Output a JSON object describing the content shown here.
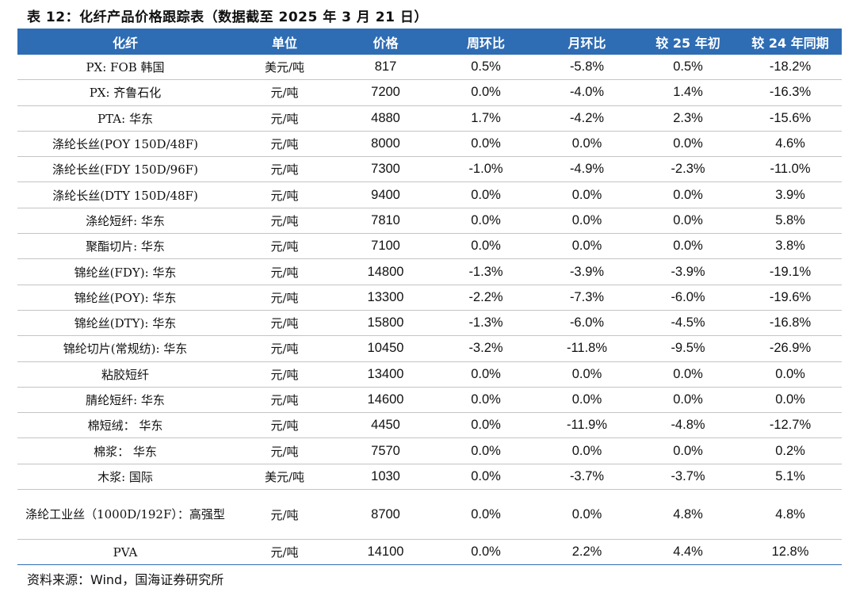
{
  "title": "表 12：化纤产品价格跟踪表（数据截至 2025 年 3 月 21 日）",
  "headers": [
    "化纤",
    "单位",
    "价格",
    "周环比",
    "月环比",
    "较 25 年初",
    "较 24 年同期"
  ],
  "rows": [
    {
      "name": "PX: FOB 韩国",
      "unit": "美元/吨",
      "price": "817",
      "wow": "0.5%",
      "mom": "-5.8%",
      "ytd": "0.5%",
      "yoy": "-18.2%"
    },
    {
      "name": "PX: 齐鲁石化",
      "unit": "元/吨",
      "price": "7200",
      "wow": "0.0%",
      "mom": "-4.0%",
      "ytd": "1.4%",
      "yoy": "-16.3%"
    },
    {
      "name": "PTA: 华东",
      "unit": "元/吨",
      "price": "4880",
      "wow": "1.7%",
      "mom": "-4.2%",
      "ytd": "2.3%",
      "yoy": "-15.6%"
    },
    {
      "name": "涤纶长丝(POY 150D/48F)",
      "unit": "元/吨",
      "price": "8000",
      "wow": "0.0%",
      "mom": "0.0%",
      "ytd": "0.0%",
      "yoy": "4.6%"
    },
    {
      "name": "涤纶长丝(FDY 150D/96F)",
      "unit": "元/吨",
      "price": "7300",
      "wow": "-1.0%",
      "mom": "-4.9%",
      "ytd": "-2.3%",
      "yoy": "-11.0%"
    },
    {
      "name": "涤纶长丝(DTY 150D/48F)",
      "unit": "元/吨",
      "price": "9400",
      "wow": "0.0%",
      "mom": "0.0%",
      "ytd": "0.0%",
      "yoy": "3.9%"
    },
    {
      "name": "涤纶短纤: 华东",
      "unit": "元/吨",
      "price": "7810",
      "wow": "0.0%",
      "mom": "0.0%",
      "ytd": "0.0%",
      "yoy": "5.8%"
    },
    {
      "name": "聚酯切片: 华东",
      "unit": "元/吨",
      "price": "7100",
      "wow": "0.0%",
      "mom": "0.0%",
      "ytd": "0.0%",
      "yoy": "3.8%"
    },
    {
      "name": "锦纶丝(FDY): 华东",
      "unit": "元/吨",
      "price": "14800",
      "wow": "-1.3%",
      "mom": "-3.9%",
      "ytd": "-3.9%",
      "yoy": "-19.1%"
    },
    {
      "name": "锦纶丝(POY): 华东",
      "unit": "元/吨",
      "price": "13300",
      "wow": "-2.2%",
      "mom": "-7.3%",
      "ytd": "-6.0%",
      "yoy": "-19.6%"
    },
    {
      "name": "锦纶丝(DTY): 华东",
      "unit": "元/吨",
      "price": "15800",
      "wow": "-1.3%",
      "mom": "-6.0%",
      "ytd": "-4.5%",
      "yoy": "-16.8%"
    },
    {
      "name": "锦纶切片(常规纺): 华东",
      "unit": "元/吨",
      "price": "10450",
      "wow": "-3.2%",
      "mom": "-11.8%",
      "ytd": "-9.5%",
      "yoy": "-26.9%"
    },
    {
      "name": "粘胶短纤",
      "unit": "元/吨",
      "price": "13400",
      "wow": "0.0%",
      "mom": "0.0%",
      "ytd": "0.0%",
      "yoy": "0.0%"
    },
    {
      "name": "腈纶短纤: 华东",
      "unit": "元/吨",
      "price": "14600",
      "wow": "0.0%",
      "mom": "0.0%",
      "ytd": "0.0%",
      "yoy": "0.0%"
    },
    {
      "name": "棉短绒： 华东",
      "unit": "元/吨",
      "price": "4450",
      "wow": "0.0%",
      "mom": "-11.9%",
      "ytd": "-4.8%",
      "yoy": "-12.7%"
    },
    {
      "name": "棉浆： 华东",
      "unit": "元/吨",
      "price": "7570",
      "wow": "0.0%",
      "mom": "0.0%",
      "ytd": "0.0%",
      "yoy": "0.2%"
    },
    {
      "name": "木浆: 国际",
      "unit": "美元/吨",
      "price": "1030",
      "wow": "0.0%",
      "mom": "-3.7%",
      "ytd": "-3.7%",
      "yoy": "5.1%"
    },
    {
      "name": "涤纶工业丝（1000D/192F）：高强型",
      "unit": "元/吨",
      "price": "8700",
      "wow": "0.0%",
      "mom": "0.0%",
      "ytd": "4.8%",
      "yoy": "4.8%"
    },
    {
      "name": "PVA",
      "unit": "元/吨",
      "price": "14100",
      "wow": "0.0%",
      "mom": "2.2%",
      "ytd": "4.4%",
      "yoy": "12.8%"
    }
  ],
  "source": "资料来源：Wind，国海证券研究所",
  "colors": {
    "header_bg": "#2e6db4",
    "header_text": "#ffffff",
    "row_divider": "#c4c4c4"
  }
}
